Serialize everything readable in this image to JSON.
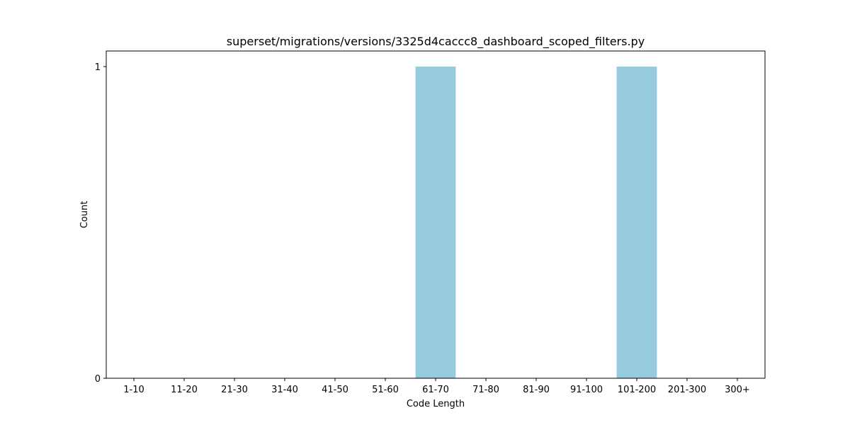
{
  "chart_data": {
    "type": "bar",
    "title": "superset/migrations/versions/3325d4caccc8_dashboard_scoped_filters.py",
    "xlabel": "Code Length",
    "ylabel": "Count",
    "categories": [
      "1-10",
      "11-20",
      "21-30",
      "31-40",
      "41-50",
      "51-60",
      "61-70",
      "71-80",
      "81-90",
      "91-100",
      "101-200",
      "201-300",
      "300+"
    ],
    "values": [
      0,
      0,
      0,
      0,
      0,
      0,
      1,
      0,
      0,
      0,
      1,
      0,
      0
    ],
    "yticks": [
      0,
      1
    ],
    "ylim": [
      0,
      1.05
    ],
    "grid": false,
    "legend": "none",
    "bar_color": "#96CADD"
  }
}
